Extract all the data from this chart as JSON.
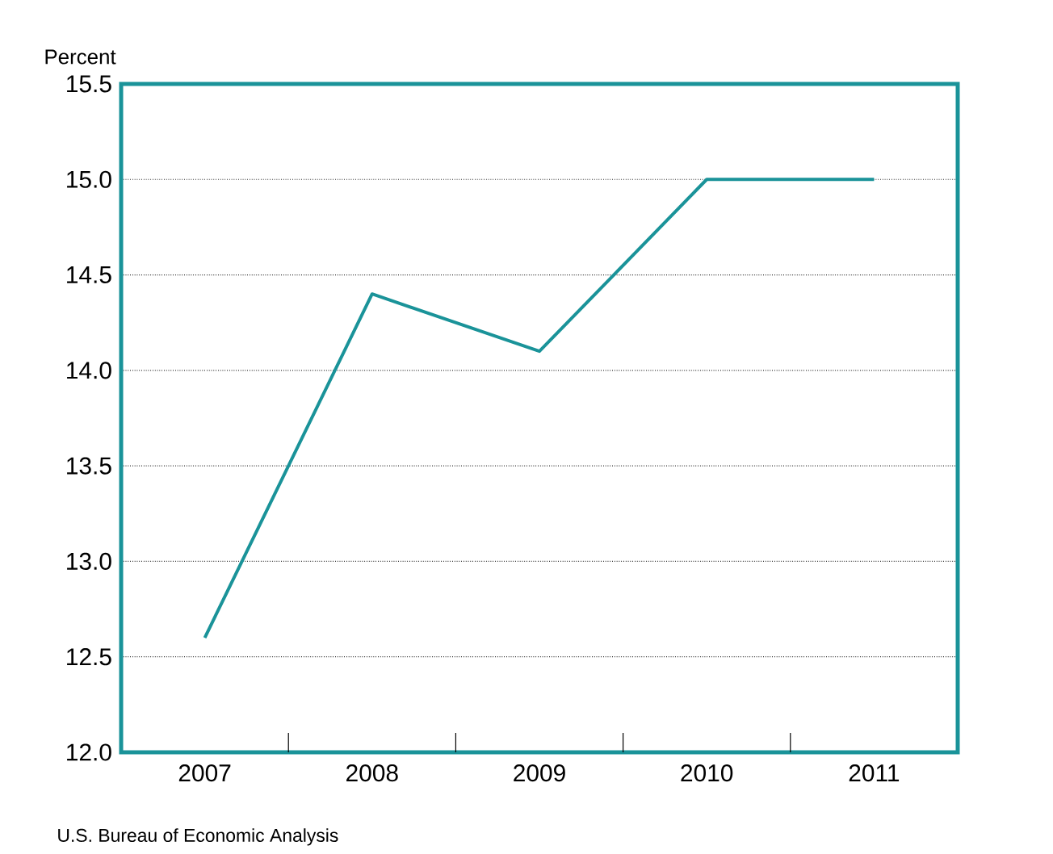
{
  "chart_data": {
    "type": "line",
    "ylabel": "Percent",
    "categories": [
      "2007",
      "2008",
      "2009",
      "2010",
      "2011"
    ],
    "series": [
      {
        "color": "#1a9399",
        "values": [
          12.6,
          14.4,
          14.1,
          15.0,
          15.0
        ]
      }
    ],
    "ylim": [
      12.0,
      15.5
    ],
    "yticks": [
      {
        "value": 12.0,
        "label": "12.0"
      },
      {
        "value": 12.5,
        "label": "12.5"
      },
      {
        "value": 13.0,
        "label": "13.0"
      },
      {
        "value": 13.5,
        "label": "13.5"
      },
      {
        "value": 14.0,
        "label": "14.0"
      },
      {
        "value": 14.5,
        "label": "14.5"
      },
      {
        "value": 15.0,
        "label": "15.0"
      },
      {
        "value": 15.5,
        "label": "15.5"
      }
    ],
    "grid": "y",
    "marker": "none",
    "line_style": "solid",
    "annotations": [
      "U.S. Bureau of Economic Analysis"
    ]
  }
}
